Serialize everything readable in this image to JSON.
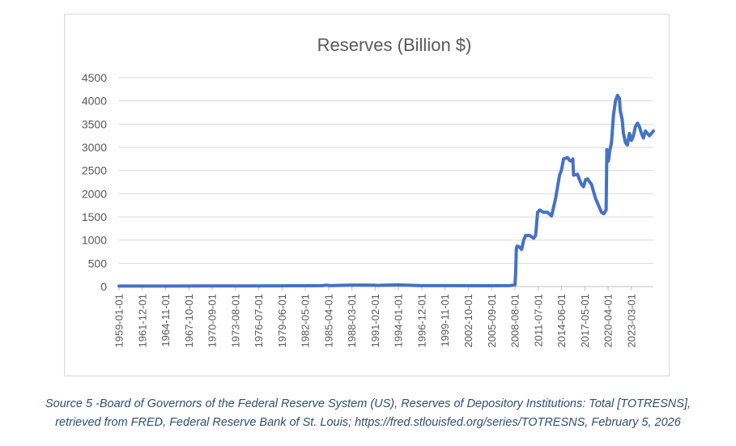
{
  "chart_data": {
    "type": "line",
    "title": "Reserves  (Billion $)",
    "xlabel": "",
    "ylabel": "",
    "ylim": [
      0,
      4500
    ],
    "y_ticks": [
      0,
      500,
      1000,
      1500,
      2000,
      2500,
      3000,
      3500,
      4000,
      4500
    ],
    "x_range": [
      "1959-01-01",
      "2025-12-01"
    ],
    "x_tick_labels": [
      "1959-01-01",
      "1961-12-01",
      "1964-11-01",
      "1967-10-01",
      "1970-09-01",
      "1973-08-01",
      "1976-07-01",
      "1979-06-01",
      "1982-05-01",
      "1985-04-01",
      "1988-03-01",
      "1991-02-01",
      "1994-01-01",
      "1996-12-01",
      "1999-11-01",
      "2002-10-01",
      "2005-09-01",
      "2008-08-01",
      "2011-07-01",
      "2014-06-01",
      "2017-05-01",
      "2020-04-01",
      "2023-03-01"
    ],
    "grid": "horizontal",
    "legend": "none",
    "line_color": "#4472c4",
    "series": [
      {
        "x": [
          "1959-01-01",
          "1965-01-01",
          "1970-01-01",
          "1975-01-01",
          "1979-06-01",
          "1980-06-01",
          "1983-01-01",
          "1984-06-01",
          "1985-01-01",
          "1985-06-01",
          "1988-01-01",
          "1990-01-01",
          "1991-01-01",
          "1991-06-01",
          "1992-06-01",
          "1994-01-01",
          "1996-01-01",
          "1996-12-01",
          "1997-06-01",
          "2000-01-01",
          "2005-01-01",
          "2007-12-01",
          "2008-08-01",
          "2008-09-01",
          "2008-10-01",
          "2008-11-01",
          "2009-02-01",
          "2009-06-01",
          "2009-09-01",
          "2009-12-01",
          "2010-06-01",
          "2010-12-01",
          "2011-03-01",
          "2011-06-01",
          "2011-09-01",
          "2012-03-01",
          "2012-09-01",
          "2013-03-01",
          "2013-09-01",
          "2014-03-01",
          "2014-06-01",
          "2014-09-01",
          "2015-03-01",
          "2015-06-01",
          "2015-09-01",
          "2015-11-01",
          "2015-12-01",
          "2016-06-01",
          "2016-09-01",
          "2016-12-01",
          "2017-03-01",
          "2017-06-01",
          "2017-09-01",
          "2018-03-01",
          "2018-06-01",
          "2018-09-01",
          "2019-03-01",
          "2019-06-01",
          "2019-09-01",
          "2019-10-01",
          "2020-01-01",
          "2020-02-01",
          "2020-04-01",
          "2020-05-01",
          "2020-06-01",
          "2020-09-01",
          "2020-12-01",
          "2021-03-01",
          "2021-06-01",
          "2021-09-01",
          "2021-10-01",
          "2022-01-01",
          "2022-03-01",
          "2022-06-01",
          "2022-09-01",
          "2022-12-01",
          "2023-03-01",
          "2023-06-01",
          "2023-09-01",
          "2023-12-01",
          "2024-03-01",
          "2024-06-01",
          "2024-09-01",
          "2024-12-01",
          "2025-03-01",
          "2025-06-01",
          "2025-09-01",
          "2025-12-01"
        ],
        "values": [
          11,
          11,
          12,
          13,
          15,
          18,
          18,
          20,
          30,
          20,
          30,
          30,
          28,
          25,
          30,
          35,
          25,
          20,
          20,
          20,
          18,
          20,
          40,
          300,
          800,
          870,
          860,
          800,
          1000,
          1100,
          1100,
          1040,
          1100,
          1600,
          1650,
          1600,
          1600,
          1520,
          1900,
          2400,
          2520,
          2750,
          2780,
          2720,
          2700,
          2750,
          2400,
          2420,
          2300,
          2200,
          2150,
          2300,
          2320,
          2200,
          2050,
          1900,
          1700,
          1600,
          1570,
          1580,
          1650,
          2950,
          2700,
          2750,
          2900,
          3100,
          3700,
          4000,
          4120,
          4050,
          3800,
          3600,
          3300,
          3100,
          3050,
          3300,
          3150,
          3250,
          3450,
          3520,
          3450,
          3300,
          3200,
          3350,
          3300,
          3250,
          3300,
          3350
        ]
      }
    ]
  },
  "caption": {
    "line1": "Source 5 -Board of Governors of the Federal Reserve System (US), Reserves of Depository Institutions: Total [TOTRESNS],",
    "line2": "retrieved from FRED, Federal Reserve Bank of St. Louis; https://fred.stlouisfed.org/series/TOTRESNS, February 5, 2026"
  }
}
